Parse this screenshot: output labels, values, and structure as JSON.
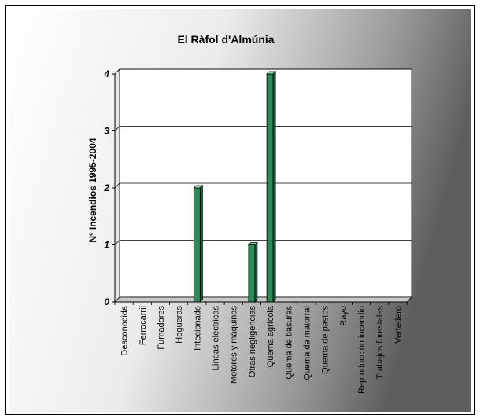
{
  "chart_data": {
    "type": "bar",
    "title": "El Ràfol d'Almúnia",
    "ylabel": "Nº Incendios 1995-2004",
    "xlabel": "",
    "ylim": [
      0,
      4
    ],
    "yticks": [
      0,
      1,
      2,
      3,
      4
    ],
    "grid": true,
    "legend": "none",
    "bar_color": "#2e8b57",
    "categories": [
      "Desconocida",
      "Ferrocarril",
      "Fumadores",
      "Hogueras",
      "Intecionado",
      "Líneas eléctricas",
      "Motores y máquinas",
      "Otras negligencias",
      "Quema agrícola",
      "Quema de basuras",
      "Quema de matorral",
      "Quema de pastos",
      "Rayo",
      "Reproducción incendio",
      "Trabajos forestales",
      "Vertedero"
    ],
    "values": [
      0,
      0,
      0,
      0,
      2,
      0,
      0,
      1,
      4,
      0,
      0,
      0,
      0,
      0,
      0,
      0
    ]
  }
}
